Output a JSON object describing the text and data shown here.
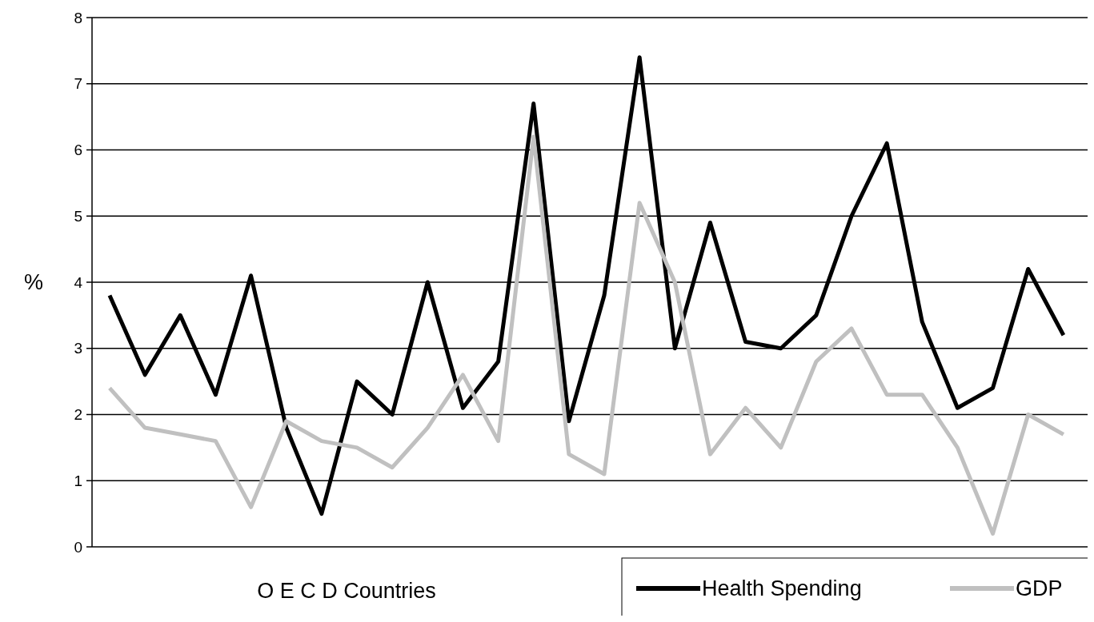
{
  "chart_data": {
    "type": "line",
    "xlabel": "O E C D Countries",
    "ylabel": "%",
    "categories": [
      null,
      null,
      null,
      null,
      null,
      null,
      null,
      null,
      null,
      null,
      null,
      null,
      null,
      null,
      null,
      null,
      null,
      null,
      null,
      null,
      null,
      null,
      null,
      null,
      null,
      null,
      null,
      null
    ],
    "series": [
      {
        "name": "Health Spending",
        "color": "#000000",
        "values": [
          3.8,
          2.6,
          3.5,
          2.3,
          4.1,
          1.8,
          0.5,
          2.5,
          2.0,
          4.0,
          2.1,
          2.8,
          6.7,
          1.9,
          3.8,
          7.4,
          3.0,
          4.9,
          3.1,
          3.0,
          3.5,
          5.0,
          6.1,
          3.4,
          2.1,
          2.4,
          4.2,
          3.2
        ]
      },
      {
        "name": "GDP",
        "color": "#c0c0c0",
        "values": [
          2.4,
          1.8,
          1.7,
          1.6,
          0.6,
          1.9,
          1.6,
          1.5,
          1.2,
          1.8,
          2.6,
          1.6,
          6.2,
          1.4,
          1.1,
          5.2,
          4.0,
          1.4,
          2.1,
          1.5,
          2.8,
          3.3,
          2.3,
          2.3,
          1.5,
          0.2,
          2.0,
          1.7
        ]
      }
    ],
    "ylim": [
      0,
      8
    ],
    "yticks": [
      0,
      1,
      2,
      3,
      4,
      5,
      6,
      7,
      8
    ],
    "grid": "y",
    "legend": "bottom right",
    "marker": "none",
    "line_style": "solid"
  }
}
